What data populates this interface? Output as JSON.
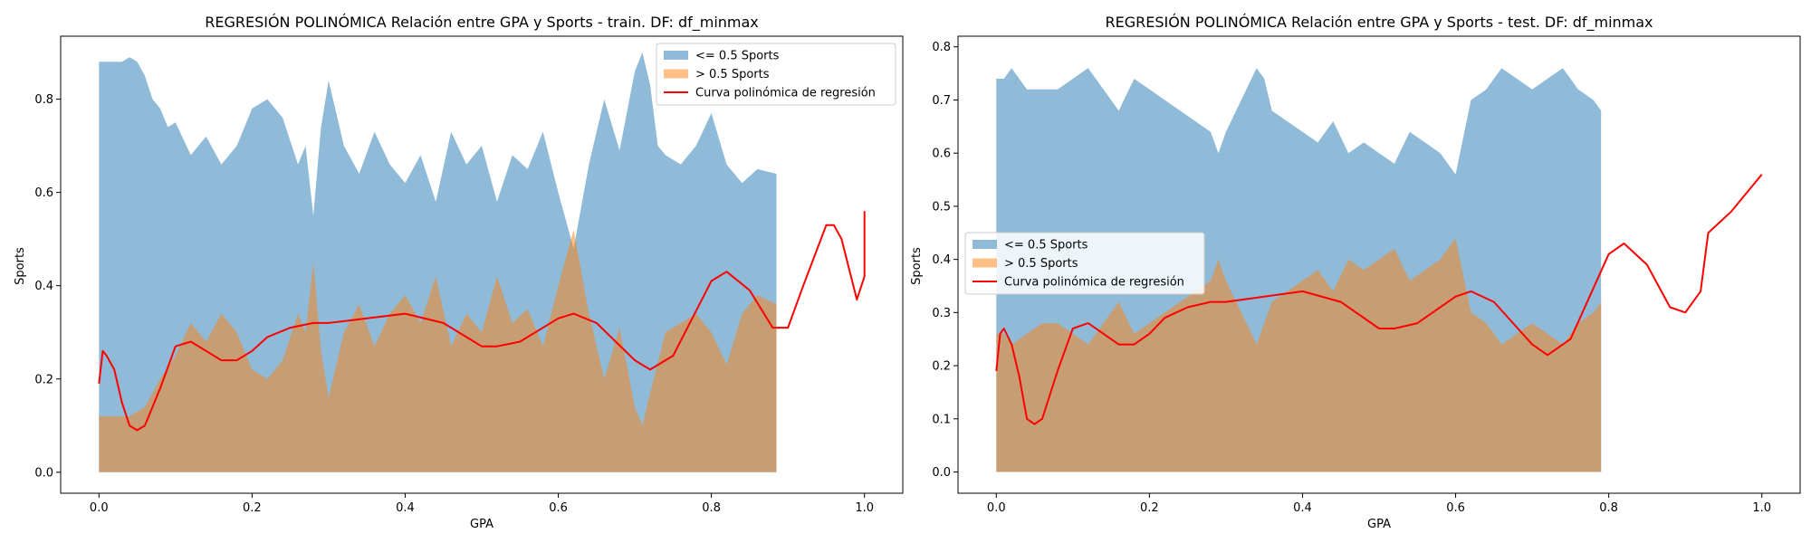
{
  "chart_data": [
    {
      "type": "area",
      "title": "REGRESIÓN POLINÓMICA Relación entre GPA y Sports - train. DF: df_minmax",
      "xlabel": "GPA",
      "ylabel": "Sports",
      "xlim": [
        -0.05,
        1.05
      ],
      "ylim": [
        -0.045,
        0.935
      ],
      "xticks": [
        0.0,
        0.2,
        0.4,
        0.6,
        0.8,
        1.0
      ],
      "xtick_labels": [
        "0.0",
        "0.2",
        "0.4",
        "0.6",
        "0.8",
        "1.0"
      ],
      "yticks": [
        0.0,
        0.2,
        0.4,
        0.6,
        0.8
      ],
      "ytick_labels": [
        "0.0",
        "0.2",
        "0.4",
        "0.6",
        "0.8"
      ],
      "legend_position": "top-right",
      "series": [
        {
          "name": "<= 0.5 Sports",
          "kind": "area",
          "color": "#1f77b4",
          "opacity": 0.5,
          "x": [
            0.0,
            0.01,
            0.02,
            0.03,
            0.04,
            0.05,
            0.06,
            0.07,
            0.08,
            0.09,
            0.1,
            0.12,
            0.14,
            0.16,
            0.18,
            0.2,
            0.22,
            0.24,
            0.26,
            0.27,
            0.28,
            0.29,
            0.3,
            0.32,
            0.34,
            0.36,
            0.38,
            0.4,
            0.42,
            0.44,
            0.46,
            0.48,
            0.5,
            0.52,
            0.54,
            0.56,
            0.58,
            0.6,
            0.62,
            0.64,
            0.66,
            0.68,
            0.7,
            0.71,
            0.72,
            0.73,
            0.74,
            0.76,
            0.78,
            0.8,
            0.82,
            0.84,
            0.86,
            0.885
          ],
          "y": [
            0.88,
            0.88,
            0.88,
            0.88,
            0.89,
            0.88,
            0.85,
            0.8,
            0.78,
            0.74,
            0.75,
            0.68,
            0.72,
            0.66,
            0.7,
            0.78,
            0.8,
            0.76,
            0.66,
            0.7,
            0.55,
            0.74,
            0.84,
            0.7,
            0.64,
            0.73,
            0.66,
            0.62,
            0.68,
            0.58,
            0.73,
            0.66,
            0.7,
            0.58,
            0.68,
            0.65,
            0.73,
            0.6,
            0.48,
            0.66,
            0.8,
            0.69,
            0.86,
            0.9,
            0.83,
            0.7,
            0.68,
            0.66,
            0.7,
            0.77,
            0.66,
            0.62,
            0.65,
            0.64
          ]
        },
        {
          "name": "> 0.5 Sports",
          "kind": "area",
          "color": "#ff7f0e",
          "opacity": 0.5,
          "x": [
            0.0,
            0.02,
            0.04,
            0.06,
            0.08,
            0.1,
            0.12,
            0.14,
            0.16,
            0.18,
            0.2,
            0.22,
            0.24,
            0.26,
            0.27,
            0.28,
            0.29,
            0.3,
            0.32,
            0.34,
            0.36,
            0.38,
            0.4,
            0.42,
            0.44,
            0.46,
            0.48,
            0.5,
            0.52,
            0.54,
            0.56,
            0.58,
            0.6,
            0.62,
            0.64,
            0.66,
            0.68,
            0.7,
            0.71,
            0.72,
            0.74,
            0.76,
            0.78,
            0.8,
            0.82,
            0.84,
            0.86,
            0.885
          ],
          "y": [
            0.12,
            0.12,
            0.12,
            0.14,
            0.2,
            0.25,
            0.32,
            0.28,
            0.34,
            0.3,
            0.22,
            0.2,
            0.24,
            0.34,
            0.3,
            0.45,
            0.26,
            0.16,
            0.3,
            0.36,
            0.27,
            0.34,
            0.38,
            0.32,
            0.42,
            0.27,
            0.34,
            0.3,
            0.42,
            0.32,
            0.35,
            0.27,
            0.4,
            0.52,
            0.34,
            0.2,
            0.31,
            0.14,
            0.1,
            0.17,
            0.3,
            0.32,
            0.34,
            0.3,
            0.23,
            0.34,
            0.38,
            0.36
          ]
        },
        {
          "name": "Curva polinómica de regresión",
          "kind": "line",
          "color": "#ff0000",
          "x": [
            0.0,
            0.005,
            0.01,
            0.02,
            0.03,
            0.04,
            0.05,
            0.06,
            0.08,
            0.1,
            0.12,
            0.14,
            0.16,
            0.18,
            0.2,
            0.22,
            0.25,
            0.28,
            0.3,
            0.35,
            0.4,
            0.45,
            0.5,
            0.52,
            0.55,
            0.6,
            0.62,
            0.65,
            0.7,
            0.72,
            0.75,
            0.8,
            0.82,
            0.85,
            0.88,
            0.9,
            0.92,
            0.95,
            0.96,
            0.97,
            0.99,
            1.0,
            1.0
          ],
          "y": [
            0.19,
            0.26,
            0.25,
            0.22,
            0.15,
            0.1,
            0.09,
            0.1,
            0.18,
            0.27,
            0.28,
            0.26,
            0.24,
            0.24,
            0.26,
            0.29,
            0.31,
            0.32,
            0.32,
            0.33,
            0.34,
            0.32,
            0.27,
            0.27,
            0.28,
            0.33,
            0.34,
            0.32,
            0.24,
            0.22,
            0.25,
            0.41,
            0.43,
            0.39,
            0.31,
            0.31,
            0.4,
            0.53,
            0.53,
            0.5,
            0.37,
            0.42,
            0.56
          ]
        }
      ]
    },
    {
      "type": "area",
      "title": "REGRESIÓN POLINÓMICA Relación entre GPA y Sports - test. DF: df_minmax",
      "xlabel": "GPA",
      "ylabel": "Sports",
      "xlim": [
        -0.05,
        1.05
      ],
      "ylim": [
        -0.04,
        0.82
      ],
      "xticks": [
        0.0,
        0.2,
        0.4,
        0.6,
        0.8,
        1.0
      ],
      "xtick_labels": [
        "0.0",
        "0.2",
        "0.4",
        "0.6",
        "0.8",
        "1.0"
      ],
      "yticks": [
        0.0,
        0.1,
        0.2,
        0.3,
        0.4,
        0.5,
        0.6,
        0.7,
        0.8
      ],
      "ytick_labels": [
        "0.0",
        "0.1",
        "0.2",
        "0.3",
        "0.4",
        "0.5",
        "0.6",
        "0.7",
        "0.8"
      ],
      "legend_position": "center-left",
      "series": [
        {
          "name": "<= 0.5 Sports",
          "kind": "area",
          "color": "#1f77b4",
          "opacity": 0.5,
          "x": [
            0.0,
            0.01,
            0.02,
            0.03,
            0.04,
            0.06,
            0.08,
            0.1,
            0.12,
            0.14,
            0.16,
            0.18,
            0.2,
            0.22,
            0.24,
            0.26,
            0.28,
            0.29,
            0.3,
            0.32,
            0.34,
            0.33,
            0.35,
            0.36,
            0.38,
            0.4,
            0.42,
            0.44,
            0.46,
            0.48,
            0.5,
            0.52,
            0.54,
            0.56,
            0.58,
            0.6,
            0.62,
            0.64,
            0.66,
            0.68,
            0.7,
            0.72,
            0.74,
            0.76,
            0.78,
            0.79
          ],
          "y": [
            0.74,
            0.74,
            0.76,
            0.74,
            0.72,
            0.72,
            0.72,
            0.74,
            0.76,
            0.72,
            0.68,
            0.74,
            0.72,
            0.7,
            0.68,
            0.66,
            0.64,
            0.6,
            0.64,
            0.7,
            0.76,
            0.78,
            0.74,
            0.68,
            0.66,
            0.64,
            0.62,
            0.66,
            0.6,
            0.62,
            0.6,
            0.58,
            0.64,
            0.62,
            0.6,
            0.56,
            0.7,
            0.72,
            0.76,
            0.74,
            0.72,
            0.74,
            0.76,
            0.72,
            0.7,
            0.68
          ]
        },
        {
          "name": "> 0.5 Sports",
          "kind": "area",
          "color": "#ff7f0e",
          "opacity": 0.5,
          "x": [
            0.0,
            0.01,
            0.02,
            0.04,
            0.06,
            0.08,
            0.1,
            0.12,
            0.14,
            0.16,
            0.18,
            0.2,
            0.22,
            0.24,
            0.26,
            0.28,
            0.29,
            0.3,
            0.32,
            0.34,
            0.36,
            0.38,
            0.4,
            0.42,
            0.44,
            0.46,
            0.48,
            0.5,
            0.52,
            0.54,
            0.56,
            0.58,
            0.6,
            0.62,
            0.64,
            0.66,
            0.68,
            0.7,
            0.72,
            0.74,
            0.76,
            0.78,
            0.79
          ],
          "y": [
            0.26,
            0.26,
            0.24,
            0.26,
            0.28,
            0.28,
            0.26,
            0.24,
            0.28,
            0.32,
            0.26,
            0.28,
            0.3,
            0.32,
            0.34,
            0.36,
            0.4,
            0.36,
            0.3,
            0.24,
            0.32,
            0.34,
            0.36,
            0.38,
            0.34,
            0.4,
            0.38,
            0.4,
            0.42,
            0.36,
            0.38,
            0.4,
            0.44,
            0.3,
            0.28,
            0.24,
            0.26,
            0.28,
            0.26,
            0.24,
            0.28,
            0.3,
            0.32
          ]
        },
        {
          "name": "Curva polinómica de regresión",
          "kind": "line",
          "color": "#ff0000",
          "x": [
            0.0,
            0.005,
            0.01,
            0.02,
            0.03,
            0.04,
            0.05,
            0.06,
            0.08,
            0.1,
            0.12,
            0.14,
            0.16,
            0.18,
            0.2,
            0.22,
            0.25,
            0.28,
            0.3,
            0.35,
            0.4,
            0.45,
            0.5,
            0.52,
            0.55,
            0.6,
            0.62,
            0.65,
            0.7,
            0.72,
            0.75,
            0.8,
            0.82,
            0.85,
            0.88,
            0.9,
            0.92,
            0.93,
            0.96,
            1.0
          ],
          "y": [
            0.19,
            0.26,
            0.27,
            0.24,
            0.18,
            0.1,
            0.09,
            0.1,
            0.19,
            0.27,
            0.28,
            0.26,
            0.24,
            0.24,
            0.26,
            0.29,
            0.31,
            0.32,
            0.32,
            0.33,
            0.34,
            0.32,
            0.27,
            0.27,
            0.28,
            0.33,
            0.34,
            0.32,
            0.24,
            0.22,
            0.25,
            0.41,
            0.43,
            0.39,
            0.31,
            0.3,
            0.34,
            0.45,
            0.49,
            0.56
          ]
        }
      ]
    }
  ]
}
